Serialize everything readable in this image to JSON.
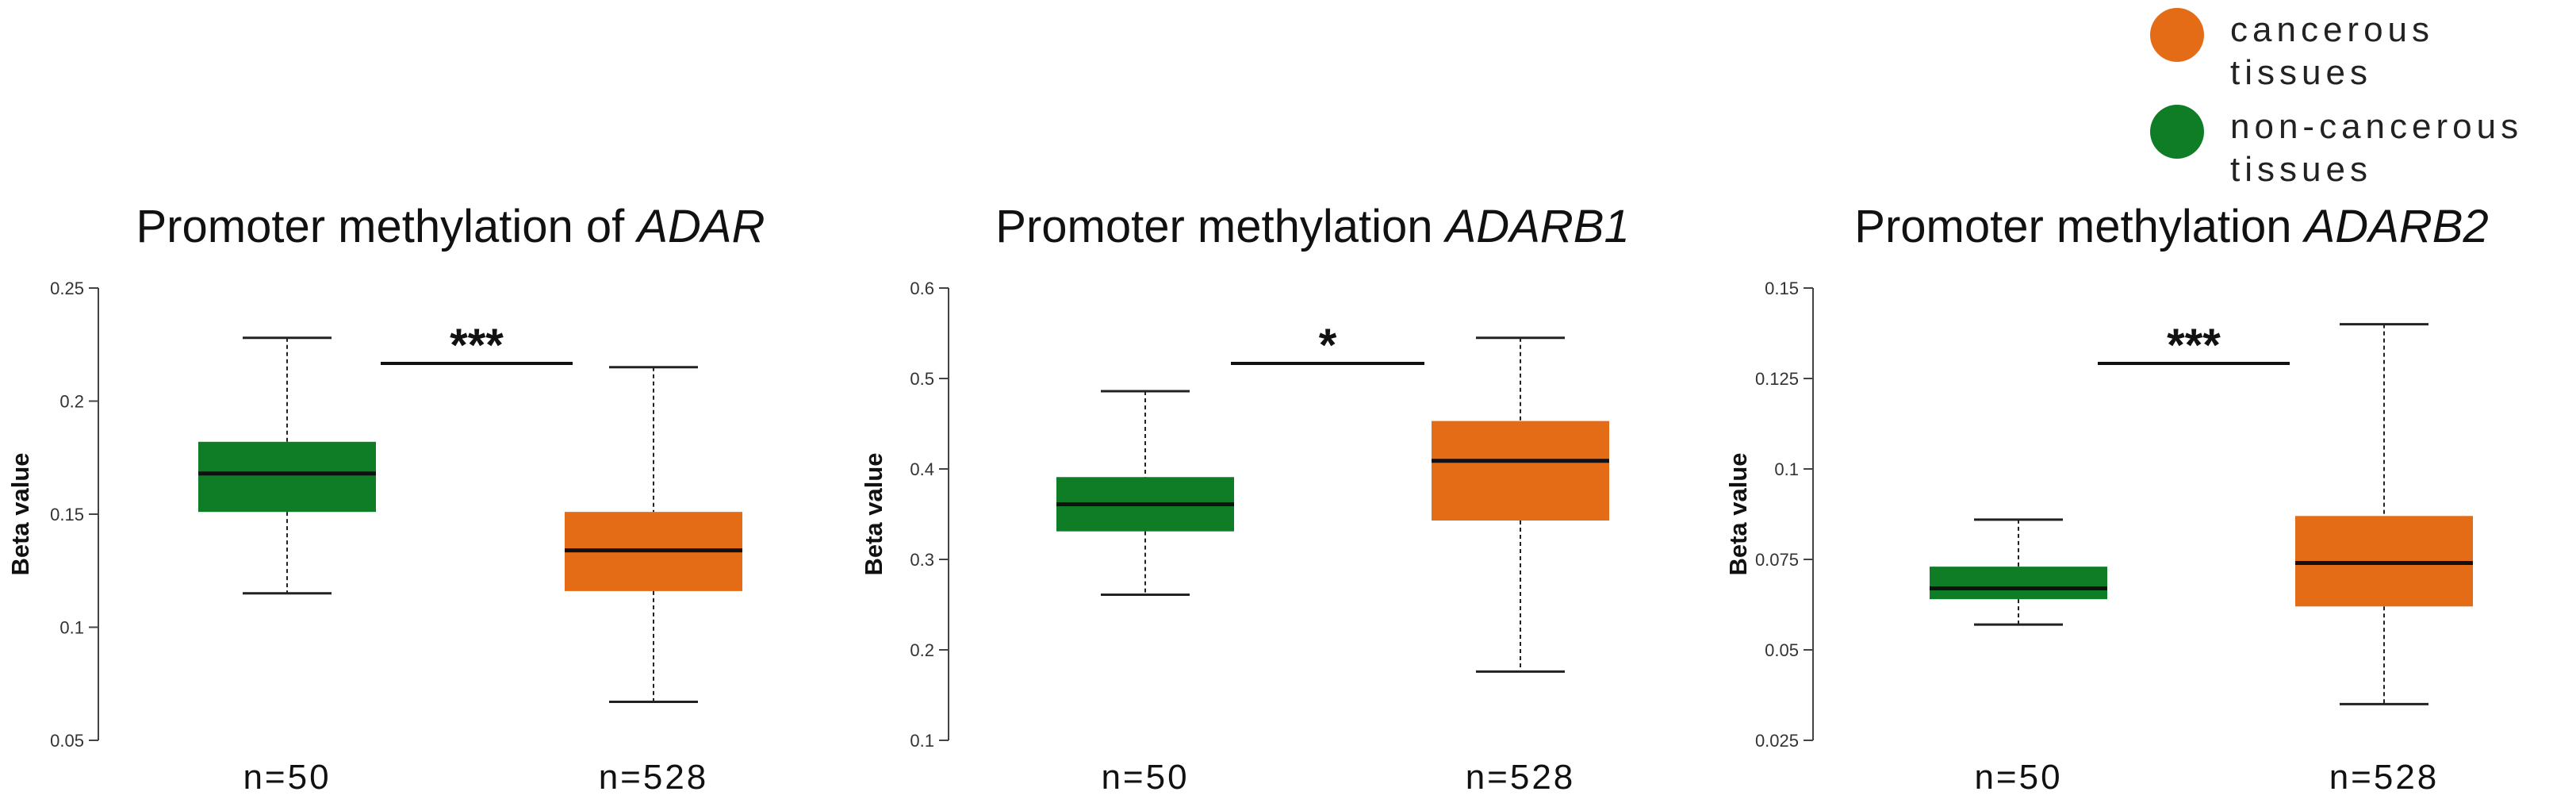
{
  "colors": {
    "cancerous": "#e46c16",
    "non_cancerous": "#0f7d25",
    "line": "#111111"
  },
  "legend": {
    "items": [
      {
        "color": "#e46c16",
        "lines": [
          "cancerous",
          "tissues"
        ]
      },
      {
        "color": "#0f7d25",
        "lines": [
          "non-cancerous",
          "tissues"
        ]
      }
    ]
  },
  "chart_data": [
    {
      "type": "box",
      "title_prefix": "Promoter methylation of ",
      "title_gene": "ADAR",
      "ylabel": "Beta value",
      "ylim": [
        0.05,
        0.25
      ],
      "yticks": [
        "0.05",
        "0.1",
        "0.15",
        "0.2",
        "0.25"
      ],
      "significance": "***",
      "groups": [
        {
          "label": "n=50",
          "color": "#0f7d25",
          "min": 0.115,
          "q1": 0.151,
          "median": 0.168,
          "q3": 0.182,
          "max": 0.228
        },
        {
          "label": "n=528",
          "color": "#e46c16",
          "min": 0.067,
          "q1": 0.116,
          "median": 0.134,
          "q3": 0.151,
          "max": 0.215
        }
      ]
    },
    {
      "type": "box",
      "title_prefix": "Promoter methylation ",
      "title_gene": "ADARB1",
      "ylabel": "Beta value",
      "ylim": [
        0.1,
        0.6
      ],
      "yticks": [
        "0.1",
        "0.2",
        "0.3",
        "0.4",
        "0.5",
        "0.6"
      ],
      "significance": "*",
      "groups": [
        {
          "label": "n=50",
          "color": "#0f7d25",
          "min": 0.261,
          "q1": 0.331,
          "median": 0.361,
          "q3": 0.391,
          "max": 0.486
        },
        {
          "label": "n=528",
          "color": "#e46c16",
          "min": 0.176,
          "q1": 0.343,
          "median": 0.409,
          "q3": 0.453,
          "max": 0.545
        }
      ]
    },
    {
      "type": "box",
      "title_prefix": "Promoter methylation ",
      "title_gene": "ADARB2",
      "ylabel": "Beta value",
      "ylim": [
        0.025,
        0.15
      ],
      "yticks": [
        "0.025",
        "0.05",
        "0.075",
        "0.1",
        "0.125",
        "0.15"
      ],
      "significance": "***",
      "groups": [
        {
          "label": "n=50",
          "color": "#0f7d25",
          "min": 0.057,
          "q1": 0.064,
          "median": 0.067,
          "q3": 0.073,
          "max": 0.086
        },
        {
          "label": "n=528",
          "color": "#e46c16",
          "min": 0.035,
          "q1": 0.062,
          "median": 0.074,
          "q3": 0.087,
          "max": 0.14
        }
      ]
    }
  ]
}
